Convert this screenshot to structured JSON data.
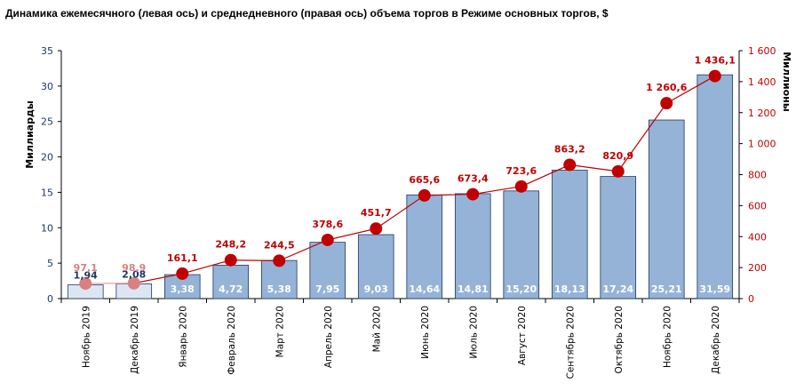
{
  "title": "Динамика ежемесячного (левая ось) и среднедневного (правая ось) объема торгов в Режиме основных торгов, $",
  "chart_data": {
    "type": "bar+line",
    "categories": [
      "Ноябрь 2019",
      "Декабрь 2019",
      "Январь 2020",
      "Февраль 2020",
      "Март 2020",
      "Апрель 2020",
      "Май 2020",
      "Июнь 2020",
      "Июль 2020",
      "Август 2020",
      "Сентябрь 2020",
      "Октябрь 2020",
      "Ноябрь 2020",
      "Декабрь 2020"
    ],
    "y_left": {
      "label": "Миллиарды",
      "min": 0,
      "max": 35,
      "ticks": [
        0,
        5,
        10,
        15,
        20,
        25,
        30,
        35
      ]
    },
    "y_right": {
      "label": "Миллионы",
      "min": 0,
      "max": 1600,
      "ticks": [
        "0",
        "200",
        "400",
        "600",
        "800",
        "1 000",
        "1 200",
        "1 400",
        "1 600"
      ],
      "tick_values": [
        0,
        200,
        400,
        600,
        800,
        1000,
        1200,
        1400,
        1600
      ]
    },
    "bars": {
      "axis": "left",
      "values": [
        1.94,
        2.08,
        3.38,
        4.72,
        5.38,
        7.95,
        9.03,
        14.64,
        14.81,
        15.2,
        18.13,
        17.24,
        25.21,
        31.59
      ],
      "labels": [
        "1,94",
        "2,08",
        "3,38",
        "4,72",
        "5,38",
        "7,95",
        "9,03",
        "14,64",
        "14,81",
        "15,20",
        "18,13",
        "17,24",
        "25,21",
        "31,59"
      ],
      "highlight_count": 2
    },
    "line": {
      "axis": "right",
      "values": [
        97.1,
        98.9,
        161.1,
        248.2,
        244.5,
        378.6,
        451.7,
        665.6,
        673.4,
        723.6,
        863.2,
        820.9,
        1260.6,
        1436.1
      ],
      "labels": [
        "97,1",
        "98,9",
        "161,1",
        "248,2",
        "244,5",
        "378,6",
        "451,7",
        "665,6",
        "673,4",
        "723,6",
        "863,2",
        "820,9",
        "1 260,6",
        "1 436,1"
      ],
      "highlight_count": 2
    },
    "colors": {
      "bar": "#95b3d7",
      "bar_light": "#dce6f2",
      "bar_edge": "#1f3864",
      "bar_label_dark": "#1f3864",
      "bar_label_inside": "#ffffff",
      "line": "#c00000",
      "line_light": "#e6a0a0",
      "point_light": "#d98080",
      "axis_left": "#1f3864",
      "axis_right": "#c00000"
    }
  }
}
